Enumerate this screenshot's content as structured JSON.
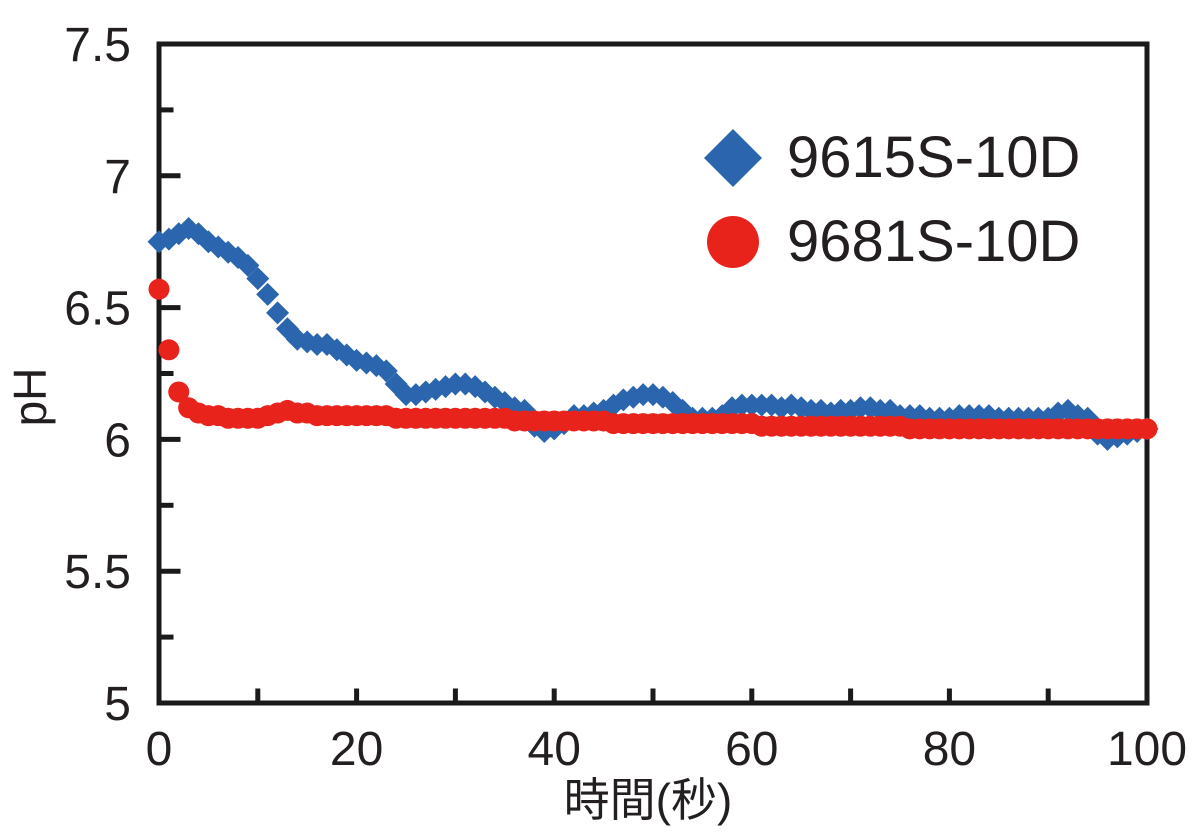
{
  "chart_data": {
    "type": "scatter",
    "title": "",
    "xlabel": "時間(秒)",
    "ylabel": "pH",
    "xlim": [
      0,
      100
    ],
    "ylim": [
      5,
      7.5
    ],
    "x_major_ticks": [
      0,
      20,
      40,
      60,
      80,
      100
    ],
    "x_minor_ticks": [
      10,
      30,
      50,
      70,
      90
    ],
    "y_major_ticks": [
      5,
      5.5,
      6,
      6.5,
      7,
      7.5
    ],
    "y_minor_ticks": [
      5.25,
      5.75,
      6.25,
      6.75,
      7.25
    ],
    "grid": false,
    "legend_position": "inside-top-right",
    "x_start": 0,
    "x_step": 1,
    "series": [
      {
        "name": "9615S-10D",
        "marker": "diamond",
        "color": "#2a65ad",
        "values": [
          6.75,
          6.76,
          6.78,
          6.8,
          6.78,
          6.75,
          6.73,
          6.71,
          6.69,
          6.66,
          6.61,
          6.55,
          6.48,
          6.42,
          6.38,
          6.37,
          6.36,
          6.36,
          6.34,
          6.32,
          6.3,
          6.29,
          6.28,
          6.26,
          6.21,
          6.17,
          6.17,
          6.18,
          6.19,
          6.2,
          6.21,
          6.21,
          6.2,
          6.18,
          6.16,
          6.14,
          6.12,
          6.11,
          6.05,
          6.03,
          6.04,
          6.06,
          6.09,
          6.09,
          6.1,
          6.11,
          6.13,
          6.15,
          6.16,
          6.17,
          6.17,
          6.16,
          6.14,
          6.11,
          6.08,
          6.08,
          6.08,
          6.09,
          6.12,
          6.13,
          6.13,
          6.13,
          6.13,
          6.12,
          6.13,
          6.12,
          6.11,
          6.11,
          6.1,
          6.11,
          6.11,
          6.12,
          6.12,
          6.11,
          6.11,
          6.09,
          6.09,
          6.09,
          6.08,
          6.08,
          6.08,
          6.09,
          6.09,
          6.09,
          6.09,
          6.08,
          6.08,
          6.08,
          6.08,
          6.08,
          6.08,
          6.1,
          6.11,
          6.09,
          6.08,
          6.02,
          6.0,
          6.01,
          6.02,
          6.03,
          6.04
        ]
      },
      {
        "name": "9681S-10D",
        "marker": "circle",
        "color": "#e8231c",
        "values": [
          6.57,
          6.34,
          6.18,
          6.12,
          6.1,
          6.09,
          6.09,
          6.08,
          6.08,
          6.08,
          6.08,
          6.09,
          6.1,
          6.11,
          6.1,
          6.1,
          6.09,
          6.09,
          6.09,
          6.09,
          6.09,
          6.09,
          6.09,
          6.09,
          6.08,
          6.08,
          6.08,
          6.08,
          6.08,
          6.08,
          6.08,
          6.08,
          6.08,
          6.08,
          6.08,
          6.08,
          6.07,
          6.07,
          6.07,
          6.07,
          6.07,
          6.07,
          6.07,
          6.07,
          6.07,
          6.07,
          6.06,
          6.06,
          6.06,
          6.06,
          6.06,
          6.06,
          6.06,
          6.06,
          6.06,
          6.06,
          6.06,
          6.06,
          6.06,
          6.06,
          6.06,
          6.05,
          6.05,
          6.05,
          6.05,
          6.05,
          6.05,
          6.05,
          6.05,
          6.05,
          6.05,
          6.05,
          6.05,
          6.05,
          6.05,
          6.05,
          6.04,
          6.04,
          6.04,
          6.04,
          6.04,
          6.04,
          6.04,
          6.04,
          6.04,
          6.04,
          6.04,
          6.04,
          6.04,
          6.04,
          6.04,
          6.04,
          6.04,
          6.04,
          6.04,
          6.04,
          6.04,
          6.04,
          6.04,
          6.04,
          6.04
        ]
      }
    ],
    "colors": {
      "axis": "#1a1a1a",
      "text": "#231f20",
      "background": "#ffffff"
    }
  }
}
